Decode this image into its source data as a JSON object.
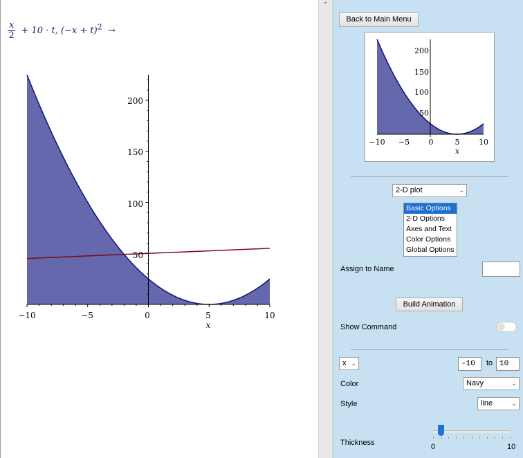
{
  "command": {
    "frac_num": "x",
    "frac_den": "2",
    "rest": "+ 10 · t, (−x + t)",
    "power": "2",
    "arrow": "→"
  },
  "main_plot": {
    "xticks": [
      "−10",
      "−5",
      "0",
      "5",
      "10"
    ],
    "yticks": [
      "200",
      "150",
      "100",
      "50"
    ],
    "xlabel": "x"
  },
  "thumb_plot": {
    "xticks": [
      "−10",
      "−5",
      "0",
      "5",
      "10"
    ],
    "yticks": [
      "200",
      "150",
      "100",
      "50"
    ],
    "xlabel": "x"
  },
  "panel": {
    "back_button": "Back to Main Menu",
    "plot_type": "2-D plot",
    "options_list": [
      "Basic Options",
      "2-D Options",
      "Axes and Text",
      "Color Options",
      "Global Options"
    ],
    "assign_label": "Assign to Name",
    "assign_value": "",
    "build_button": "Build Animation",
    "show_command_label": "Show Command",
    "variable": "x",
    "range_from": "-10",
    "range_to_label": "to",
    "range_to": "10",
    "color_label": "Color",
    "color_value": "Navy",
    "style_label": "Style",
    "style_value": "line",
    "thickness_label": "Thickness",
    "thickness_min": "0",
    "thickness_max": "10",
    "thickness_value": 1
  },
  "colors": {
    "fill": "#6568ad",
    "curve": "#0b1470",
    "line": "#7a0a14",
    "panel_bg": "#c7e0f2",
    "accent": "#1f6fd0"
  }
}
